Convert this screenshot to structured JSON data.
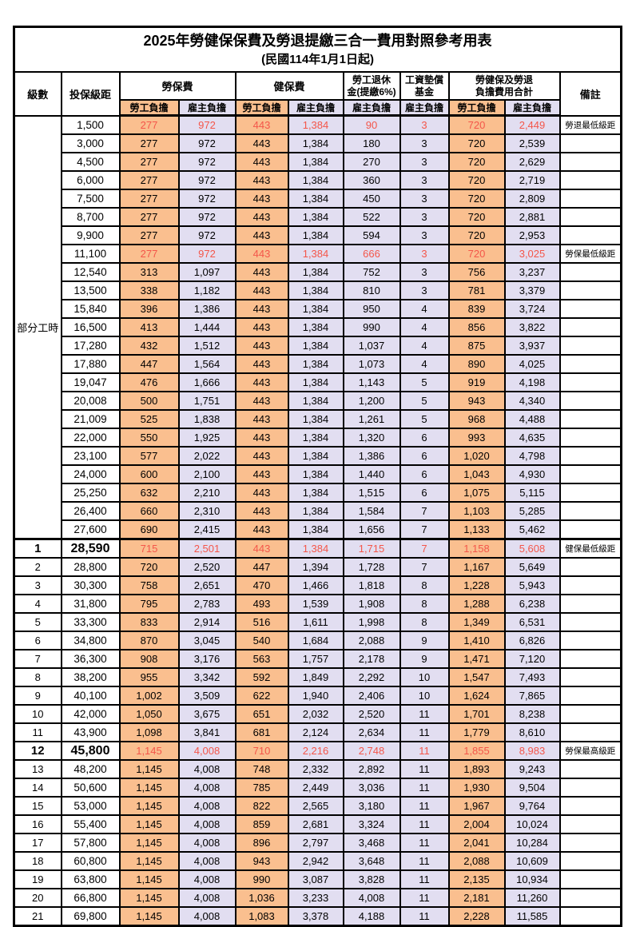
{
  "title": "2025年勞健保保費及勞退提繳三合一費用對照參考用表",
  "subtitle": "(民國114年1月1日起)",
  "colors": {
    "employee_column_bg": "#FABF8F",
    "employer_column_bg": "#E2DEF1",
    "highlight_red": "#F4564A",
    "border": "#000000"
  },
  "table": {
    "headers": {
      "level": "級數",
      "bracket": "投保級距",
      "labor_insurance": "勞保費",
      "health_insurance": "健保費",
      "pension_line1": "勞工退休",
      "pension_line2": "金(提繳6%)",
      "wage_fund_line1": "工資墊償",
      "wage_fund_line2": "基金",
      "total_line1": "勞健保及勞退",
      "total_line2": "負擔費用合計",
      "remark": "備註",
      "employee": "勞工負擔",
      "employer": "雇主負擔"
    },
    "part_time_label": "部分工時",
    "rows": [
      {
        "level": null,
        "bracket": "1,500",
        "v": [
          "277",
          "972",
          "443",
          "1,384",
          "90",
          "3",
          "720",
          "2,449"
        ],
        "remark": "勞退最低級距",
        "red": true,
        "bold": false,
        "thickTop": false
      },
      {
        "level": null,
        "bracket": "3,000",
        "v": [
          "277",
          "972",
          "443",
          "1,384",
          "180",
          "3",
          "720",
          "2,539"
        ],
        "remark": "",
        "red": false,
        "bold": false,
        "thickTop": false
      },
      {
        "level": null,
        "bracket": "4,500",
        "v": [
          "277",
          "972",
          "443",
          "1,384",
          "270",
          "3",
          "720",
          "2,629"
        ],
        "remark": "",
        "red": false,
        "bold": false,
        "thickTop": false
      },
      {
        "level": null,
        "bracket": "6,000",
        "v": [
          "277",
          "972",
          "443",
          "1,384",
          "360",
          "3",
          "720",
          "2,719"
        ],
        "remark": "",
        "red": false,
        "bold": false,
        "thickTop": false
      },
      {
        "level": null,
        "bracket": "7,500",
        "v": [
          "277",
          "972",
          "443",
          "1,384",
          "450",
          "3",
          "720",
          "2,809"
        ],
        "remark": "",
        "red": false,
        "bold": false,
        "thickTop": false
      },
      {
        "level": null,
        "bracket": "8,700",
        "v": [
          "277",
          "972",
          "443",
          "1,384",
          "522",
          "3",
          "720",
          "2,881"
        ],
        "remark": "",
        "red": false,
        "bold": false,
        "thickTop": false
      },
      {
        "level": null,
        "bracket": "9,900",
        "v": [
          "277",
          "972",
          "443",
          "1,384",
          "594",
          "3",
          "720",
          "2,953"
        ],
        "remark": "",
        "red": false,
        "bold": false,
        "thickTop": false
      },
      {
        "level": null,
        "bracket": "11,100",
        "v": [
          "277",
          "972",
          "443",
          "1,384",
          "666",
          "3",
          "720",
          "3,025"
        ],
        "remark": "勞保最低級距",
        "red": true,
        "bold": false,
        "thickTop": false
      },
      {
        "level": null,
        "bracket": "12,540",
        "v": [
          "313",
          "1,097",
          "443",
          "1,384",
          "752",
          "3",
          "756",
          "3,237"
        ],
        "remark": "",
        "red": false,
        "bold": false,
        "thickTop": false
      },
      {
        "level": null,
        "bracket": "13,500",
        "v": [
          "338",
          "1,182",
          "443",
          "1,384",
          "810",
          "3",
          "781",
          "3,379"
        ],
        "remark": "",
        "red": false,
        "bold": false,
        "thickTop": false
      },
      {
        "level": null,
        "bracket": "15,840",
        "v": [
          "396",
          "1,386",
          "443",
          "1,384",
          "950",
          "4",
          "839",
          "3,724"
        ],
        "remark": "",
        "red": false,
        "bold": false,
        "thickTop": false
      },
      {
        "level": null,
        "bracket": "16,500",
        "v": [
          "413",
          "1,444",
          "443",
          "1,384",
          "990",
          "4",
          "856",
          "3,822"
        ],
        "remark": "",
        "red": false,
        "bold": false,
        "thickTop": false
      },
      {
        "level": null,
        "bracket": "17,280",
        "v": [
          "432",
          "1,512",
          "443",
          "1,384",
          "1,037",
          "4",
          "875",
          "3,937"
        ],
        "remark": "",
        "red": false,
        "bold": false,
        "thickTop": false
      },
      {
        "level": null,
        "bracket": "17,880",
        "v": [
          "447",
          "1,564",
          "443",
          "1,384",
          "1,073",
          "4",
          "890",
          "4,025"
        ],
        "remark": "",
        "red": false,
        "bold": false,
        "thickTop": false
      },
      {
        "level": null,
        "bracket": "19,047",
        "v": [
          "476",
          "1,666",
          "443",
          "1,384",
          "1,143",
          "5",
          "919",
          "4,198"
        ],
        "remark": "",
        "red": false,
        "bold": false,
        "thickTop": false
      },
      {
        "level": null,
        "bracket": "20,008",
        "v": [
          "500",
          "1,751",
          "443",
          "1,384",
          "1,200",
          "5",
          "943",
          "4,340"
        ],
        "remark": "",
        "red": false,
        "bold": false,
        "thickTop": false
      },
      {
        "level": null,
        "bracket": "21,009",
        "v": [
          "525",
          "1,838",
          "443",
          "1,384",
          "1,261",
          "5",
          "968",
          "4,488"
        ],
        "remark": "",
        "red": false,
        "bold": false,
        "thickTop": false
      },
      {
        "level": null,
        "bracket": "22,000",
        "v": [
          "550",
          "1,925",
          "443",
          "1,384",
          "1,320",
          "6",
          "993",
          "4,635"
        ],
        "remark": "",
        "red": false,
        "bold": false,
        "thickTop": false
      },
      {
        "level": null,
        "bracket": "23,100",
        "v": [
          "577",
          "2,022",
          "443",
          "1,384",
          "1,386",
          "6",
          "1,020",
          "4,798"
        ],
        "remark": "",
        "red": false,
        "bold": false,
        "thickTop": false
      },
      {
        "level": null,
        "bracket": "24,000",
        "v": [
          "600",
          "2,100",
          "443",
          "1,384",
          "1,440",
          "6",
          "1,043",
          "4,930"
        ],
        "remark": "",
        "red": false,
        "bold": false,
        "thickTop": false
      },
      {
        "level": null,
        "bracket": "25,250",
        "v": [
          "632",
          "2,210",
          "443",
          "1,384",
          "1,515",
          "6",
          "1,075",
          "5,115"
        ],
        "remark": "",
        "red": false,
        "bold": false,
        "thickTop": false
      },
      {
        "level": null,
        "bracket": "26,400",
        "v": [
          "660",
          "2,310",
          "443",
          "1,384",
          "1,584",
          "7",
          "1,103",
          "5,285"
        ],
        "remark": "",
        "red": false,
        "bold": false,
        "thickTop": false
      },
      {
        "level": null,
        "bracket": "27,600",
        "v": [
          "690",
          "2,415",
          "443",
          "1,384",
          "1,656",
          "7",
          "1,133",
          "5,462"
        ],
        "remark": "",
        "red": false,
        "bold": false,
        "thickTop": false
      },
      {
        "level": "1",
        "bracket": "28,590",
        "v": [
          "715",
          "2,501",
          "443",
          "1,384",
          "1,715",
          "7",
          "1,158",
          "5,608"
        ],
        "remark": "健保最低級距",
        "red": true,
        "bold": true,
        "thickTop": true
      },
      {
        "level": "2",
        "bracket": "28,800",
        "v": [
          "720",
          "2,520",
          "447",
          "1,394",
          "1,728",
          "7",
          "1,167",
          "5,649"
        ],
        "remark": "",
        "red": false,
        "bold": false,
        "thickTop": false
      },
      {
        "level": "3",
        "bracket": "30,300",
        "v": [
          "758",
          "2,651",
          "470",
          "1,466",
          "1,818",
          "8",
          "1,228",
          "5,943"
        ],
        "remark": "",
        "red": false,
        "bold": false,
        "thickTop": false
      },
      {
        "level": "4",
        "bracket": "31,800",
        "v": [
          "795",
          "2,783",
          "493",
          "1,539",
          "1,908",
          "8",
          "1,288",
          "6,238"
        ],
        "remark": "",
        "red": false,
        "bold": false,
        "thickTop": false
      },
      {
        "level": "5",
        "bracket": "33,300",
        "v": [
          "833",
          "2,914",
          "516",
          "1,611",
          "1,998",
          "8",
          "1,349",
          "6,531"
        ],
        "remark": "",
        "red": false,
        "bold": false,
        "thickTop": false
      },
      {
        "level": "6",
        "bracket": "34,800",
        "v": [
          "870",
          "3,045",
          "540",
          "1,684",
          "2,088",
          "9",
          "1,410",
          "6,826"
        ],
        "remark": "",
        "red": false,
        "bold": false,
        "thickTop": false
      },
      {
        "level": "7",
        "bracket": "36,300",
        "v": [
          "908",
          "3,176",
          "563",
          "1,757",
          "2,178",
          "9",
          "1,471",
          "7,120"
        ],
        "remark": "",
        "red": false,
        "bold": false,
        "thickTop": false
      },
      {
        "level": "8",
        "bracket": "38,200",
        "v": [
          "955",
          "3,342",
          "592",
          "1,849",
          "2,292",
          "10",
          "1,547",
          "7,493"
        ],
        "remark": "",
        "red": false,
        "bold": false,
        "thickTop": false
      },
      {
        "level": "9",
        "bracket": "40,100",
        "v": [
          "1,002",
          "3,509",
          "622",
          "1,940",
          "2,406",
          "10",
          "1,624",
          "7,865"
        ],
        "remark": "",
        "red": false,
        "bold": false,
        "thickTop": false
      },
      {
        "level": "10",
        "bracket": "42,000",
        "v": [
          "1,050",
          "3,675",
          "651",
          "2,032",
          "2,520",
          "11",
          "1,701",
          "8,238"
        ],
        "remark": "",
        "red": false,
        "bold": false,
        "thickTop": false
      },
      {
        "level": "11",
        "bracket": "43,900",
        "v": [
          "1,098",
          "3,841",
          "681",
          "2,124",
          "2,634",
          "11",
          "1,779",
          "8,610"
        ],
        "remark": "",
        "red": false,
        "bold": false,
        "thickTop": false
      },
      {
        "level": "12",
        "bracket": "45,800",
        "v": [
          "1,145",
          "4,008",
          "710",
          "2,216",
          "2,748",
          "11",
          "1,855",
          "8,983"
        ],
        "remark": "勞保最高級距",
        "red": true,
        "bold": true,
        "thickTop": false
      },
      {
        "level": "13",
        "bracket": "48,200",
        "v": [
          "1,145",
          "4,008",
          "748",
          "2,332",
          "2,892",
          "11",
          "1,893",
          "9,243"
        ],
        "remark": "",
        "red": false,
        "bold": false,
        "thickTop": false
      },
      {
        "level": "14",
        "bracket": "50,600",
        "v": [
          "1,145",
          "4,008",
          "785",
          "2,449",
          "3,036",
          "11",
          "1,930",
          "9,504"
        ],
        "remark": "",
        "red": false,
        "bold": false,
        "thickTop": false
      },
      {
        "level": "15",
        "bracket": "53,000",
        "v": [
          "1,145",
          "4,008",
          "822",
          "2,565",
          "3,180",
          "11",
          "1,967",
          "9,764"
        ],
        "remark": "",
        "red": false,
        "bold": false,
        "thickTop": false
      },
      {
        "level": "16",
        "bracket": "55,400",
        "v": [
          "1,145",
          "4,008",
          "859",
          "2,681",
          "3,324",
          "11",
          "2,004",
          "10,024"
        ],
        "remark": "",
        "red": false,
        "bold": false,
        "thickTop": false
      },
      {
        "level": "17",
        "bracket": "57,800",
        "v": [
          "1,145",
          "4,008",
          "896",
          "2,797",
          "3,468",
          "11",
          "2,041",
          "10,284"
        ],
        "remark": "",
        "red": false,
        "bold": false,
        "thickTop": false
      },
      {
        "level": "18",
        "bracket": "60,800",
        "v": [
          "1,145",
          "4,008",
          "943",
          "2,942",
          "3,648",
          "11",
          "2,088",
          "10,609"
        ],
        "remark": "",
        "red": false,
        "bold": false,
        "thickTop": false
      },
      {
        "level": "19",
        "bracket": "63,800",
        "v": [
          "1,145",
          "4,008",
          "990",
          "3,087",
          "3,828",
          "11",
          "2,135",
          "10,934"
        ],
        "remark": "",
        "red": false,
        "bold": false,
        "thickTop": false
      },
      {
        "level": "20",
        "bracket": "66,800",
        "v": [
          "1,145",
          "4,008",
          "1,036",
          "3,233",
          "4,008",
          "11",
          "2,181",
          "11,260"
        ],
        "remark": "",
        "red": false,
        "bold": false,
        "thickTop": false
      },
      {
        "level": "21",
        "bracket": "69,800",
        "v": [
          "1,145",
          "4,008",
          "1,083",
          "3,378",
          "4,188",
          "11",
          "2,228",
          "11,585"
        ],
        "remark": "",
        "red": false,
        "bold": false,
        "thickTop": false
      }
    ]
  }
}
